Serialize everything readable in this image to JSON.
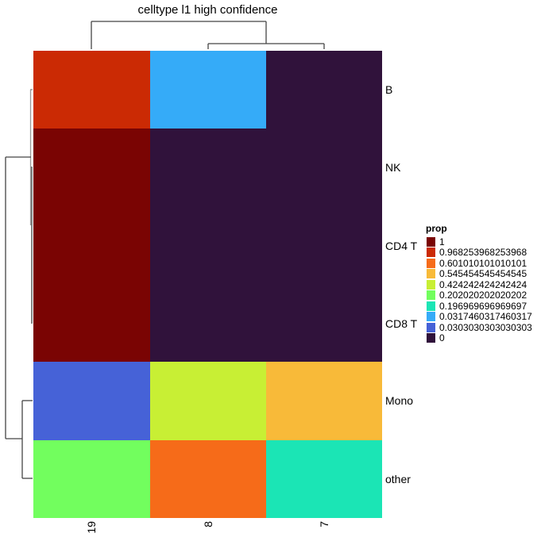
{
  "chart_data": {
    "type": "heatmap",
    "title": "celltype l1 high confidence",
    "xlabel": "",
    "ylabel": "",
    "columns": [
      "19",
      "8",
      "7"
    ],
    "rows": [
      "B",
      "NK",
      "CD4 T",
      "CD8 T",
      "Mono",
      "other"
    ],
    "values": [
      [
        0.968253968253968,
        0.0317460317460317,
        0
      ],
      [
        1,
        0,
        0
      ],
      [
        1,
        0,
        0
      ],
      [
        1,
        0,
        0
      ],
      [
        0.0303030303030303,
        0.424242424242424,
        0.545454545454545
      ],
      [
        0.202020202020202,
        0.601010101010101,
        0.196969696969697
      ]
    ],
    "legend": {
      "title": "prop",
      "position": "right",
      "entries": [
        {
          "label": "1",
          "color": "#7a0403"
        },
        {
          "label": "0.968253968253968",
          "color": "#cb2a04"
        },
        {
          "label": "0.601010101010101",
          "color": "#f66b19"
        },
        {
          "label": "0.545454545454545",
          "color": "#f8ba39"
        },
        {
          "label": "0.424242424242424",
          "color": "#c8ef34"
        },
        {
          "label": "0.202020202020202",
          "color": "#72fe5e"
        },
        {
          "label": "0.196969696969697",
          "color": "#1be5b5"
        },
        {
          "label": "0.0317460317460317",
          "color": "#35abf8"
        },
        {
          "label": "0.0303030303030303",
          "color": "#4662d7"
        },
        {
          "label": "0",
          "color": "#30123b"
        }
      ]
    },
    "cell_colors": [
      [
        "#cb2a04",
        "#35abf8",
        "#30123b"
      ],
      [
        "#7a0403",
        "#30123b",
        "#30123b"
      ],
      [
        "#7a0403",
        "#30123b",
        "#30123b"
      ],
      [
        "#7a0403",
        "#30123b",
        "#30123b"
      ],
      [
        "#4662d7",
        "#c8ef34",
        "#f8ba39"
      ],
      [
        "#72fe5e",
        "#f66b19",
        "#1be5b5"
      ]
    ],
    "row_dendrogram": true,
    "column_dendrogram": true,
    "grid": false
  }
}
